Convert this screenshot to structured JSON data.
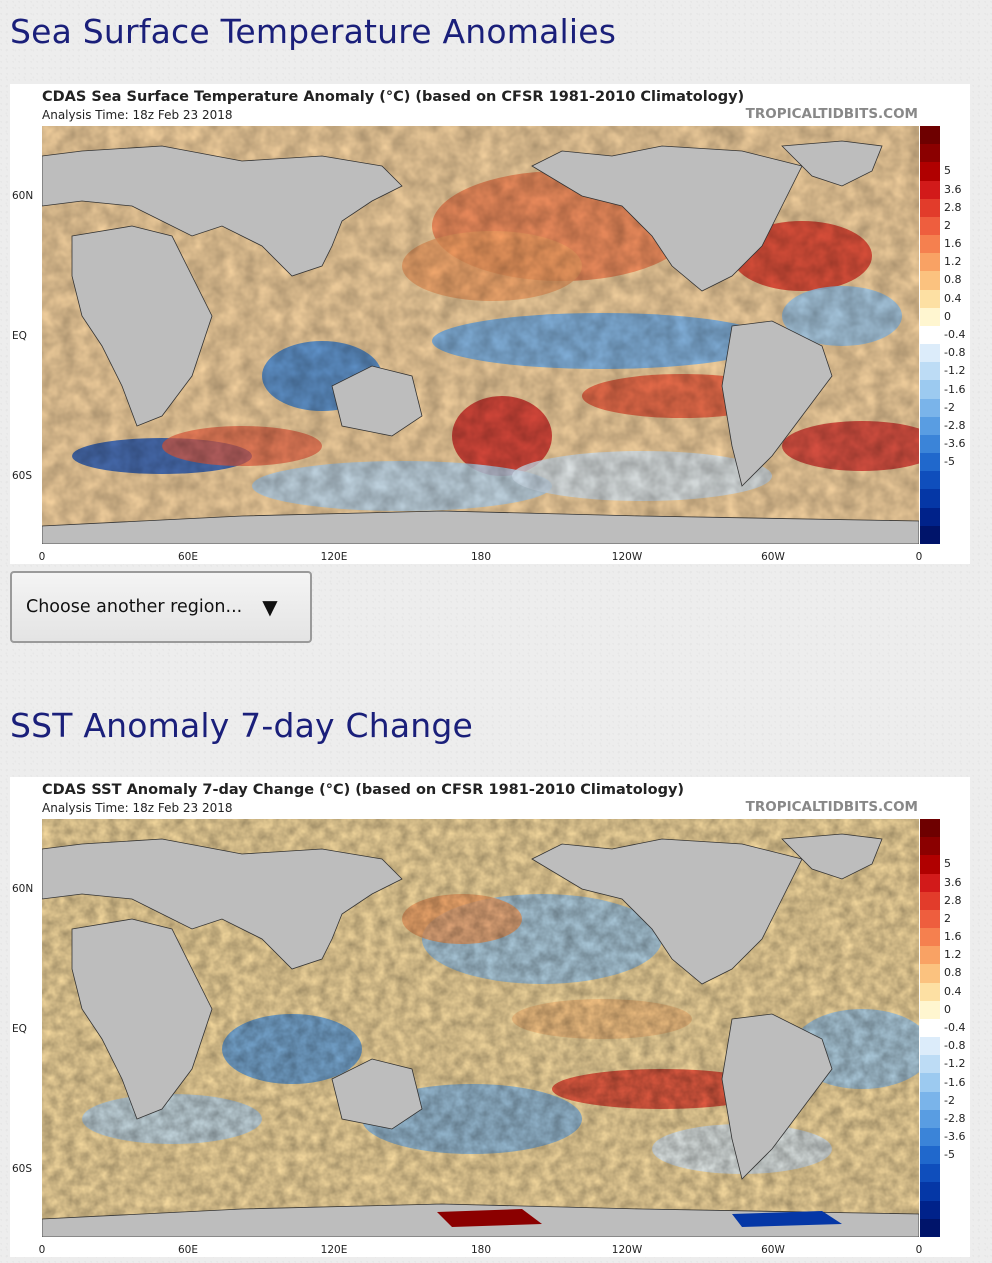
{
  "section1": {
    "heading": "Sea Surface Temperature Anomalies",
    "figure": {
      "title": "CDAS Sea Surface Temperature Anomaly (°C) (based on CFSR 1981-2010 Climatology)",
      "subtitle": "Analysis Time: 18z Feb 23 2018",
      "credit": "TROPICALTIDBITS.COM"
    }
  },
  "region_select": {
    "label": "Choose another region...",
    "arrow": "▼"
  },
  "section2": {
    "heading": "SST Anomaly 7-day Change",
    "figure": {
      "title": "CDAS SST Anomaly 7-day Change (°C) (based on CFSR 1981-2010 Climatology)",
      "subtitle": "Analysis Time: 18z Feb 23 2018",
      "credit": "TROPICALTIDBITS.COM"
    }
  },
  "map_axes": {
    "lat_labels": [
      "60N",
      "EQ",
      "60S"
    ],
    "lon_labels": [
      "0",
      "60E",
      "120E",
      "180",
      "120W",
      "60W",
      "0"
    ]
  },
  "colorbar": {
    "labels": [
      "5",
      "3.6",
      "2.8",
      "2",
      "1.6",
      "1.2",
      "0.8",
      "0.4",
      "0",
      "-0.4",
      "-0.8",
      "-1.2",
      "-1.6",
      "-2",
      "-2.8",
      "-3.6",
      "-5"
    ],
    "colors": [
      "#6e0000",
      "#8b0000",
      "#b00000",
      "#d21a1a",
      "#e23c2b",
      "#ee5e3e",
      "#f5804f",
      "#f9a264",
      "#fbc27f",
      "#fde0a3",
      "#fff6d0",
      "#ffffff",
      "#dcecfa",
      "#bddcf5",
      "#9ccaf0",
      "#7ab4ea",
      "#599de2",
      "#3b84d8",
      "#2068cc",
      "#0f4ebc",
      "#0537a6",
      "#00228a",
      "#00146a"
    ]
  }
}
